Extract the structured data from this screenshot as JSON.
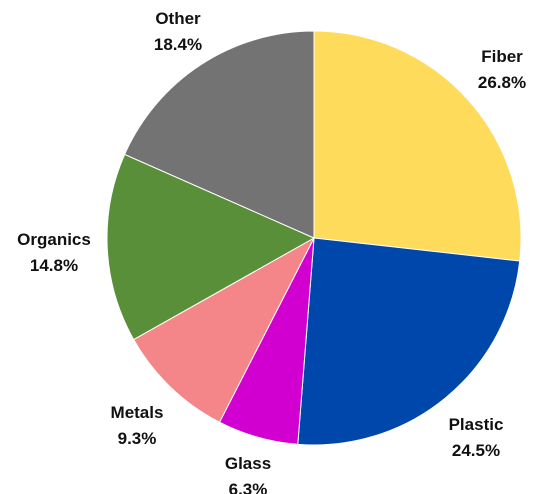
{
  "chart_data": {
    "type": "pie",
    "title": "",
    "slices": [
      {
        "label": "Fiber",
        "value": 26.8,
        "value_label": "26.8%",
        "color": "#FFDB5C"
      },
      {
        "label": "Plastic",
        "value": 24.5,
        "value_label": "24.5%",
        "color": "#0047AB"
      },
      {
        "label": "Glass",
        "value": 6.3,
        "value_label": "6.3%",
        "color": "#D100D1"
      },
      {
        "label": "Metals",
        "value": 9.3,
        "value_label": "9.3%",
        "color": "#F4868A"
      },
      {
        "label": "Organics",
        "value": 14.8,
        "value_label": "14.8%",
        "color": "#5A8F3A"
      },
      {
        "label": "Other",
        "value": 18.4,
        "value_label": "18.4%",
        "color": "#737373"
      }
    ],
    "start_angle": "12 o'clock",
    "direction": "clockwise",
    "legend": "none",
    "labels": "outside"
  }
}
